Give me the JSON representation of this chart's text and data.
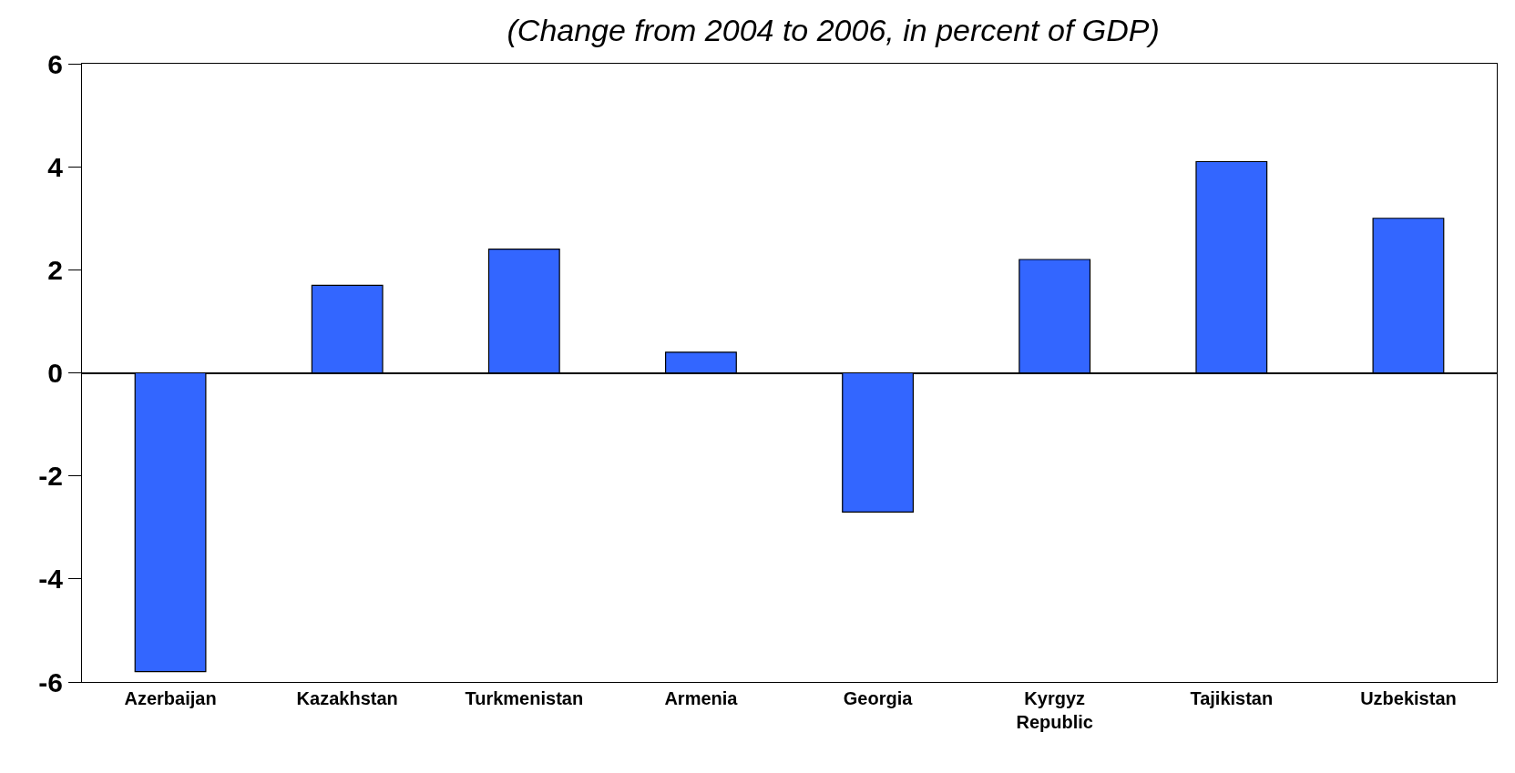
{
  "chart_data": {
    "type": "bar",
    "subtitle": "(Change from 2004 to 2006, in percent of GDP)",
    "categories": [
      "Azerbaijan",
      "Kazakhstan",
      "Turkmenistan",
      "Armenia",
      "Georgia",
      "Kyrgyz Republic",
      "Tajikistan",
      "Uzbekistan"
    ],
    "values": [
      -5.8,
      1.7,
      2.4,
      0.4,
      -2.7,
      2.2,
      4.1,
      3.0
    ],
    "color": "#3366ff",
    "ylim": [
      -6,
      6
    ],
    "yticks": [
      -6,
      -4,
      -2,
      0,
      2,
      4,
      6
    ],
    "legend": false
  }
}
